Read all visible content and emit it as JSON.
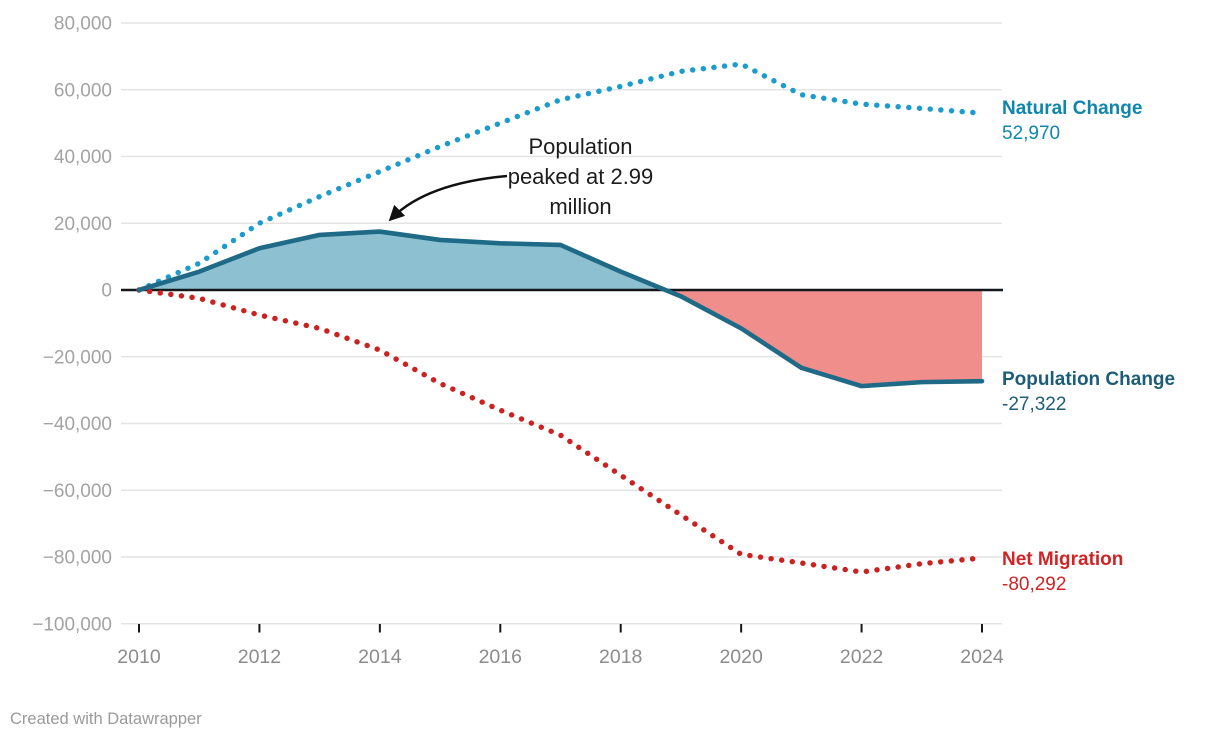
{
  "chart_data": {
    "type": "area",
    "title": "",
    "x": [
      2010,
      2011,
      2012,
      2013,
      2014,
      2015,
      2016,
      2017,
      2018,
      2019,
      2020,
      2021,
      2022,
      2023,
      2024
    ],
    "series": [
      {
        "name": "Natural Change",
        "style": "dotted",
        "color": "#1b9ccf",
        "values": [
          0,
          8000,
          20000,
          28000,
          35500,
          43000,
          50000,
          57000,
          61000,
          65500,
          67700,
          58500,
          55700,
          54400,
          52970
        ],
        "end_label": "52,970"
      },
      {
        "name": "Population Change",
        "style": "solid-area",
        "color": "#1f6a86",
        "values": [
          0,
          5500,
          12500,
          16500,
          17500,
          15000,
          14000,
          13500,
          5500,
          -1900,
          -11500,
          -23300,
          -28800,
          -27600,
          -27322
        ],
        "end_label": "-27,322"
      },
      {
        "name": "Net Migration",
        "style": "dotted",
        "color": "#cb2121",
        "values": [
          0,
          -2500,
          -7500,
          -11500,
          -18000,
          -28000,
          -36000,
          -43500,
          -55500,
          -67400,
          -79200,
          -81800,
          -84500,
          -82000,
          -80292
        ],
        "end_label": "-80,292"
      }
    ],
    "ylim": [
      -100000,
      80000
    ],
    "ytick_step": 20000,
    "xticks": [
      2010,
      2012,
      2014,
      2016,
      2018,
      2020,
      2022,
      2024
    ],
    "grid": "horizontal",
    "legend_position": "right-direct-labels",
    "annotation": "Population peaked at 2.99 million"
  },
  "y_axis": {
    "labels": [
      "80,000",
      "60,000",
      "40,000",
      "20,000",
      "0",
      "−20,000",
      "−40,000",
      "−60,000",
      "−80,000",
      "−100,000"
    ]
  },
  "x_axis": {
    "labels": [
      "2010",
      "2012",
      "2014",
      "2016",
      "2018",
      "2020",
      "2022",
      "2024"
    ]
  },
  "legend": {
    "natural": {
      "name": "Natural Change",
      "value": "52,970",
      "color": "#0f86ac"
    },
    "population": {
      "name": "Population Change",
      "value": "-27,322",
      "color": "#1d5d78"
    },
    "migration": {
      "name": "Net Migration",
      "value": "-80,292",
      "color": "#d02426"
    }
  },
  "annotation": {
    "lines": [
      "Population",
      "peaked at 2.99",
      "million"
    ]
  },
  "footer": {
    "text": "Created with Datawrapper"
  },
  "colors": {
    "fill_positive": "#8dc0d1",
    "fill_negative": "#f08e8c",
    "grid": "#e4e4e4",
    "zero_line": "#15181a",
    "tick_mark": "#15181a",
    "axis_text_y": "#a3a3a3",
    "axis_text_x": "#8c8c8c"
  }
}
